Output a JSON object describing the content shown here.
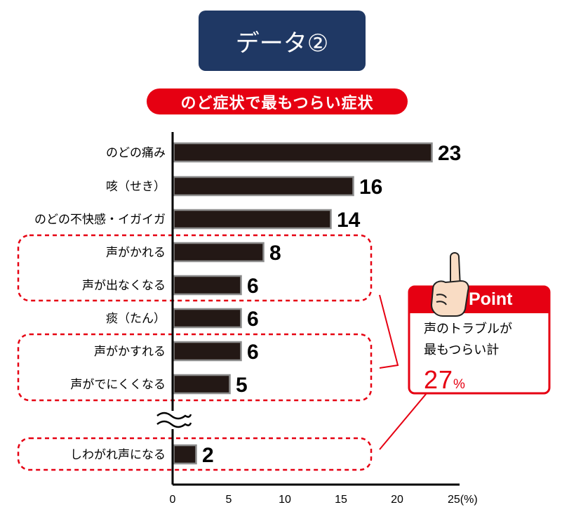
{
  "header": {
    "title": "データ②"
  },
  "chart_data": {
    "type": "bar",
    "orientation": "horizontal",
    "title": "のど症状で最もつらい症状",
    "categories": [
      "のどの痛み",
      "咳（せき）",
      "のどの不快感・イガイガ",
      "声がかれる",
      "声が出なくなる",
      "痰（たん）",
      "声がかすれる",
      "声がでにくくなる",
      "しわがれ声になる"
    ],
    "values": [
      23,
      16,
      14,
      8,
      6,
      6,
      6,
      5,
      2
    ],
    "xlim": [
      0,
      25
    ],
    "xticks": [
      0,
      5,
      10,
      15,
      20,
      25
    ],
    "xtick_labels": [
      "0",
      "5",
      "10",
      "15",
      "20",
      "25(%)"
    ],
    "axis_break": "between 声がでにくくなる and しわがれ声になる",
    "highlighted_groups": [
      [
        "声がかれる",
        "声が出なくなる"
      ],
      [
        "声がかすれる",
        "声がでにくくなる"
      ],
      [
        "しわがれ声になる"
      ]
    ]
  },
  "callout": {
    "label": "Point",
    "line1": "声のトラブルが",
    "line2": "最もつらい計",
    "percent_value": "27",
    "percent_unit": "%"
  },
  "colors": {
    "bar_fill": "#231815",
    "bar_edge": "#8c8c8c",
    "accent_red": "#e60012",
    "header_navy": "#1f3864"
  }
}
